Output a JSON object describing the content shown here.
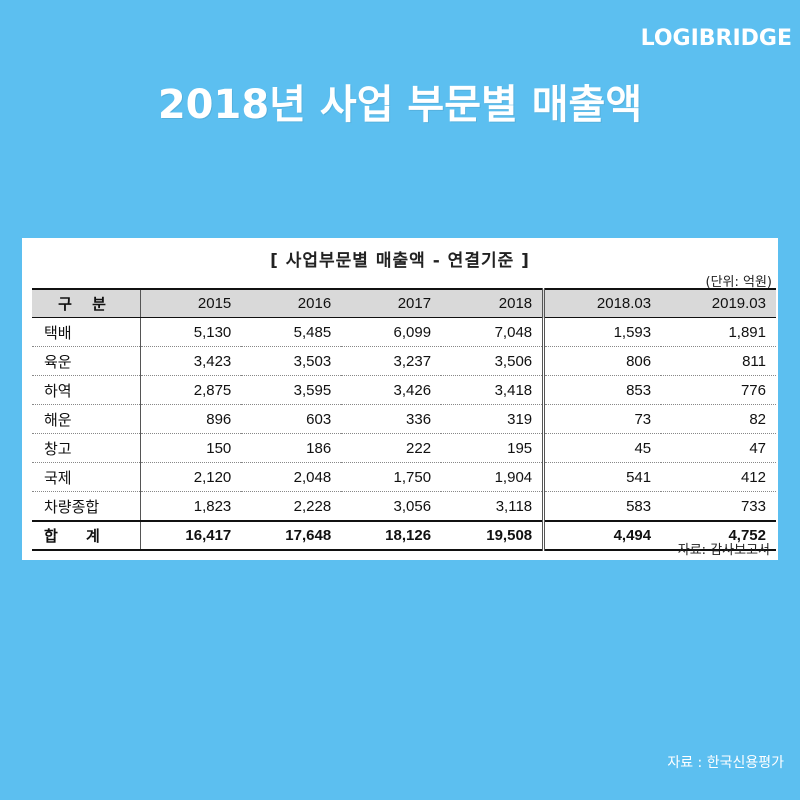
{
  "brand": "LOGIBRIDGE",
  "headline": "2018년 사업 부문별 매출액",
  "table_title": "[ 사업부문별 매출액 - 연결기준 ]",
  "unit": "(단위: 억원)",
  "note": "자료: 감사보고서",
  "source": "자료 :  한국신용평가",
  "chart_data": {
    "type": "table",
    "title": "[ 사업부문별 매출액 - 연결기준 ]",
    "unit": "(단위: 억원)",
    "header_label": "구 분",
    "columns": [
      "2015",
      "2016",
      "2017",
      "2018",
      "2018.03",
      "2019.03"
    ],
    "rows": [
      {
        "label": "택배",
        "values": [
          "5,130",
          "5,485",
          "6,099",
          "7,048",
          "1,593",
          "1,891"
        ]
      },
      {
        "label": "육운",
        "values": [
          "3,423",
          "3,503",
          "3,237",
          "3,506",
          "806",
          "811"
        ]
      },
      {
        "label": "하역",
        "values": [
          "2,875",
          "3,595",
          "3,426",
          "3,418",
          "853",
          "776"
        ]
      },
      {
        "label": "해운",
        "values": [
          "896",
          "603",
          "336",
          "319",
          "73",
          "82"
        ]
      },
      {
        "label": "창고",
        "values": [
          "150",
          "186",
          "222",
          "195",
          "45",
          "47"
        ]
      },
      {
        "label": "국제",
        "values": [
          "2,120",
          "2,048",
          "1,750",
          "1,904",
          "541",
          "412"
        ]
      },
      {
        "label": "차량종합",
        "values": [
          "1,823",
          "2,228",
          "3,056",
          "3,118",
          "583",
          "733"
        ]
      }
    ],
    "total": {
      "label": "합 계",
      "values": [
        "16,417",
        "17,648",
        "18,126",
        "19,508",
        "4,494",
        "4,752"
      ]
    }
  }
}
